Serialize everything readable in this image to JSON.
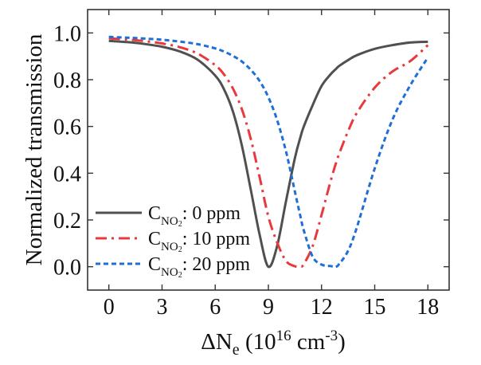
{
  "chart_data": {
    "type": "line",
    "title": "",
    "xlabel": {
      "main": "ΔN",
      "sub": "e",
      "rest": " (10",
      "sup": "16",
      "unit": " cm",
      "unit_sup": "-3",
      "close": ")"
    },
    "ylabel": "Normalized transmission",
    "xlim": [
      -1.2,
      19.2
    ],
    "ylim": [
      -0.1,
      1.1
    ],
    "x_ticks": [
      0,
      3,
      6,
      9,
      12,
      15,
      18
    ],
    "x_tick_labels": [
      "0",
      "3",
      "6",
      "9",
      "12",
      "15",
      "18"
    ],
    "y_ticks": [
      0.0,
      0.2,
      0.4,
      0.6,
      0.8,
      1.0
    ],
    "y_tick_labels": [
      "0.0",
      "0.2",
      "0.4",
      "0.6",
      "0.8",
      "1.0"
    ],
    "grid": false,
    "legend_position": "bottom-left",
    "x": [
      0,
      1,
      2,
      3,
      4,
      5,
      6,
      6.5,
      7,
      7.5,
      8,
      8.5,
      9,
      9.5,
      10,
      10.5,
      10.8,
      11,
      11.5,
      12,
      12.5,
      12.8,
      13,
      13.5,
      14,
      15,
      16,
      17,
      18
    ],
    "series": [
      {
        "name": "C_NO2: 0 ppm",
        "legend": {
          "c": "C",
          "sub": "NO",
          "sub2": "2",
          "rest": ": 0 ppm"
        },
        "color": "#505050",
        "style": "solid",
        "values": [
          0.966,
          0.961,
          0.953,
          0.941,
          0.921,
          0.886,
          0.818,
          0.758,
          0.664,
          0.52,
          0.333,
          0.139,
          0.0,
          0.09,
          0.283,
          0.466,
          0.552,
          0.6,
          0.691,
          0.773,
          0.822,
          0.845,
          0.859,
          0.884,
          0.905,
          0.932,
          0.948,
          0.959,
          0.962
        ]
      },
      {
        "name": "C_NO2: 10 ppm",
        "legend": {
          "c": "C",
          "sub": "NO",
          "sub2": "2",
          "rest": ": 10 ppm"
        },
        "color": "#e8393c",
        "style": "dashdot",
        "values": [
          0.977,
          0.972,
          0.965,
          0.955,
          0.939,
          0.912,
          0.862,
          0.822,
          0.762,
          0.675,
          0.549,
          0.385,
          0.214,
          0.103,
          0.024,
          0.002,
          0.0,
          0.011,
          0.088,
          0.222,
          0.363,
          0.44,
          0.484,
          0.58,
          0.659,
          0.766,
          0.835,
          0.879,
          0.948
        ]
      },
      {
        "name": "C_NO2: 20 ppm",
        "legend": {
          "c": "C",
          "sub": "NO",
          "sub2": "2",
          "rest": ": 20 ppm"
        },
        "color": "#1f6fd6",
        "style": "dashed",
        "values": [
          0.983,
          0.98,
          0.976,
          0.971,
          0.963,
          0.952,
          0.934,
          0.92,
          0.902,
          0.878,
          0.843,
          0.795,
          0.725,
          0.626,
          0.491,
          0.32,
          0.218,
          0.155,
          0.043,
          0.009,
          0.003,
          0.0,
          0.012,
          0.068,
          0.17,
          0.42,
          0.629,
          0.775,
          0.895
        ]
      }
    ]
  }
}
